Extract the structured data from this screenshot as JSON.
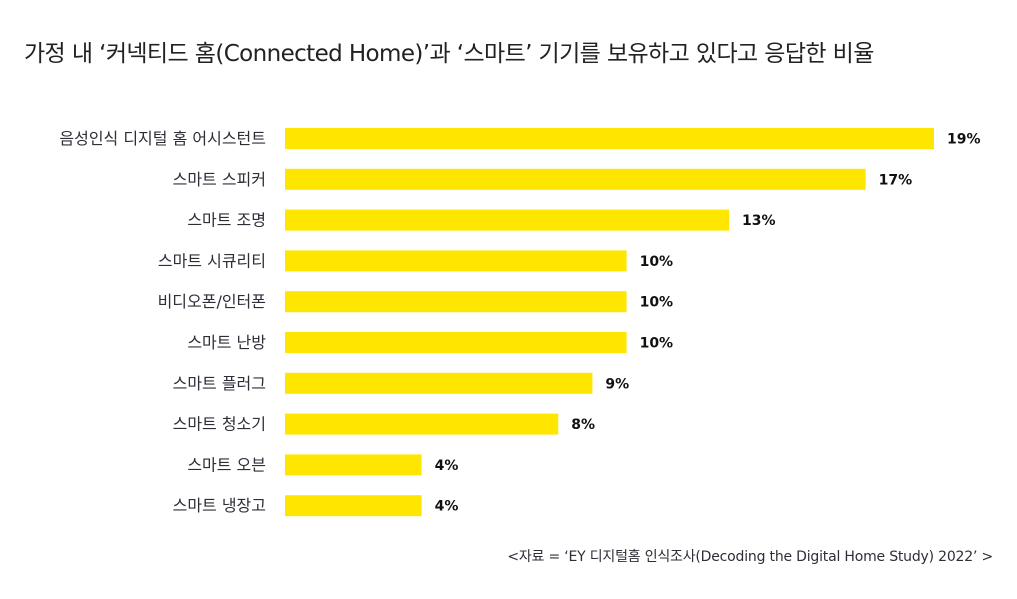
{
  "title": "가정 내 ‘커넥티드 홈(Connected Home)’과 ‘스마트’ 기기를 보유하고 있다고 응답한 비율",
  "source": "<자료 = ‘EY 디지털홈 인식조사(Decoding the Digital Home Study) 2022’ >",
  "colors": {
    "bar": "#ffe600",
    "label_text": "#2e2e38",
    "value_text": "#111111"
  },
  "chart_data": {
    "type": "bar",
    "orientation": "horizontal",
    "categories": [
      "음성인식 디지털 홈 어시스턴트",
      "스마트 스피커",
      "스마트 조명",
      "스마트 시큐리티",
      "비디오폰/인터폰",
      "스마트 난방",
      "스마트 플러그",
      "스마트 청소기",
      "스마트 오븐",
      "스마트 냉장고"
    ],
    "values": [
      19,
      17,
      13,
      10,
      10,
      10,
      9,
      8,
      4,
      4
    ],
    "value_labels": [
      "19%",
      "17%",
      "13%",
      "10%",
      "10%",
      "10%",
      "9%",
      "8%",
      "4%",
      "4%"
    ],
    "unit": "%",
    "xlim": [
      0,
      19
    ],
    "grid": false,
    "legend": "none"
  }
}
